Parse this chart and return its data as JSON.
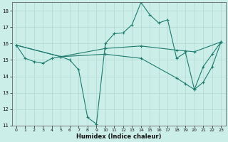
{
  "xlabel": "Humidex (Indice chaleur)",
  "bg_color": "#cceee8",
  "line_color": "#1e7b6e",
  "grid_color": "#b0d8d0",
  "xlim": [
    -0.5,
    23.5
  ],
  "ylim": [
    11,
    18.5
  ],
  "yticks": [
    11,
    12,
    13,
    14,
    15,
    16,
    17,
    18
  ],
  "xticks": [
    0,
    1,
    2,
    3,
    4,
    5,
    6,
    7,
    8,
    9,
    10,
    11,
    12,
    13,
    14,
    15,
    16,
    17,
    18,
    19,
    20,
    21,
    22,
    23
  ],
  "lines": [
    {
      "x": [
        0,
        1,
        2,
        3,
        4,
        5,
        6,
        7,
        8,
        9,
        10,
        11,
        12,
        13,
        14,
        15,
        16,
        17,
        18,
        19,
        20,
        21,
        22,
        23
      ],
      "y": [
        15.9,
        15.1,
        14.9,
        14.8,
        15.1,
        15.2,
        15.0,
        14.4,
        11.5,
        11.1,
        16.0,
        16.6,
        16.65,
        17.15,
        18.5,
        17.75,
        17.25,
        17.45,
        15.1,
        15.45,
        13.2,
        14.6,
        15.35,
        16.1
      ]
    },
    {
      "x": [
        0,
        5,
        10,
        14,
        18,
        19,
        20,
        23
      ],
      "y": [
        15.9,
        15.2,
        15.7,
        15.85,
        15.6,
        15.55,
        15.5,
        16.1
      ]
    },
    {
      "x": [
        0,
        5,
        10,
        14,
        18,
        19,
        20,
        21,
        22,
        23
      ],
      "y": [
        15.9,
        15.2,
        15.35,
        15.1,
        13.9,
        13.55,
        13.2,
        13.65,
        14.6,
        16.1
      ]
    }
  ]
}
